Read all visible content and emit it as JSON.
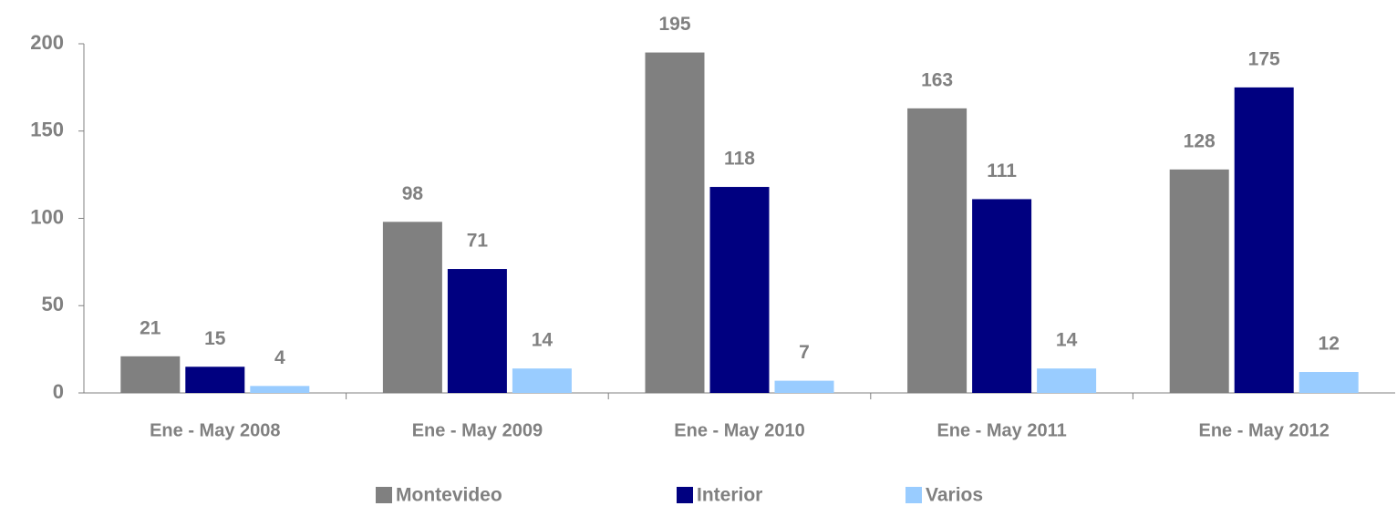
{
  "chart_data": {
    "type": "bar",
    "categories": [
      "Ene - May 2008",
      "Ene - May 2009",
      "Ene - May 2010",
      "Ene - May 2011",
      "Ene - May 2012"
    ],
    "series": [
      {
        "name": "Montevideo",
        "color": "#808080",
        "values": [
          21,
          98,
          195,
          163,
          128
        ]
      },
      {
        "name": "Interior",
        "color": "#000080",
        "values": [
          15,
          71,
          118,
          111,
          175
        ]
      },
      {
        "name": "Varios",
        "color": "#99ccff",
        "values": [
          4,
          14,
          7,
          14,
          12
        ]
      }
    ],
    "ylim": [
      0,
      200
    ],
    "yticks": [
      0,
      50,
      100,
      150,
      200
    ],
    "grid": false,
    "legend": "bottom"
  }
}
